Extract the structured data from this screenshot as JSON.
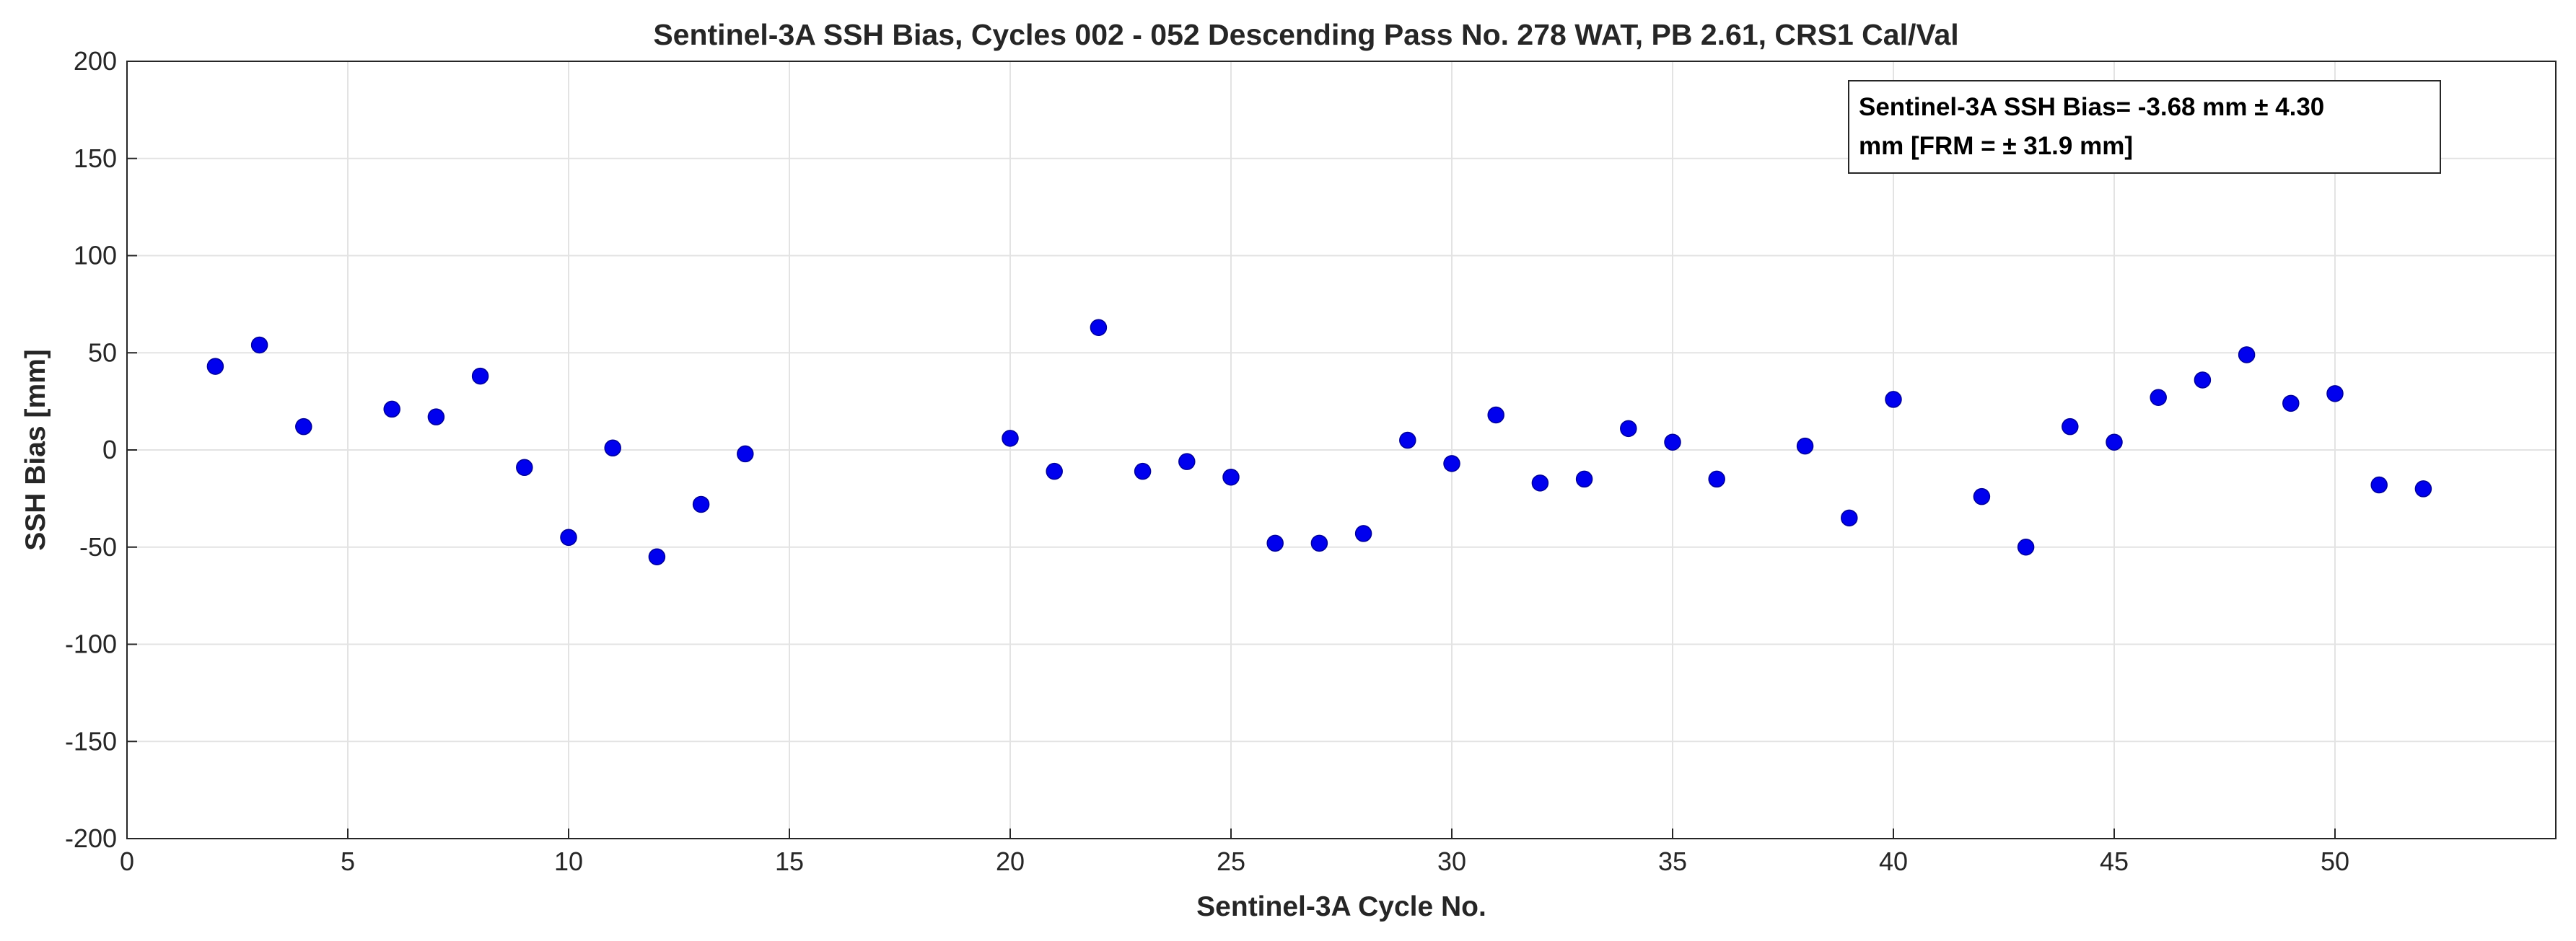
{
  "chart_data": {
    "type": "scatter",
    "title": "Sentinel-3A SSH Bias, Cycles 002 - 052 Descending Pass No. 278 WAT, PB 2.61, CRS1 Cal/Val",
    "xlabel": "Sentinel-3A Cycle No.",
    "ylabel": "SSH Bias [mm]",
    "xlim": [
      0,
      55
    ],
    "ylim": [
      -200,
      200
    ],
    "xticks": [
      "0",
      "5",
      "10",
      "15",
      "20",
      "25",
      "30",
      "35",
      "40",
      "45",
      "50"
    ],
    "yticks": [
      "200",
      "150",
      "100",
      "50",
      "0",
      "-50",
      "-100",
      "-150",
      "-200"
    ],
    "grid": true,
    "marker_color": "#0000ee",
    "series": [
      {
        "name": "SSH Bias",
        "points": [
          {
            "x": 2,
            "y": 43
          },
          {
            "x": 3,
            "y": 54
          },
          {
            "x": 4,
            "y": 12
          },
          {
            "x": 6,
            "y": 21
          },
          {
            "x": 7,
            "y": 17
          },
          {
            "x": 8,
            "y": 38
          },
          {
            "x": 9,
            "y": -9
          },
          {
            "x": 10,
            "y": -45
          },
          {
            "x": 11,
            "y": 1
          },
          {
            "x": 12,
            "y": -55
          },
          {
            "x": 13,
            "y": -28
          },
          {
            "x": 14,
            "y": -2
          },
          {
            "x": 20,
            "y": 6
          },
          {
            "x": 21,
            "y": -11
          },
          {
            "x": 22,
            "y": 63
          },
          {
            "x": 23,
            "y": -11
          },
          {
            "x": 24,
            "y": -6
          },
          {
            "x": 25,
            "y": -14
          },
          {
            "x": 26,
            "y": -48
          },
          {
            "x": 27,
            "y": -48
          },
          {
            "x": 28,
            "y": -43
          },
          {
            "x": 29,
            "y": 5
          },
          {
            "x": 30,
            "y": -7
          },
          {
            "x": 31,
            "y": 18
          },
          {
            "x": 32,
            "y": -17
          },
          {
            "x": 33,
            "y": -15
          },
          {
            "x": 34,
            "y": 11
          },
          {
            "x": 35,
            "y": 4
          },
          {
            "x": 36,
            "y": -15
          },
          {
            "x": 38,
            "y": 2
          },
          {
            "x": 39,
            "y": -35
          },
          {
            "x": 40,
            "y": 26
          },
          {
            "x": 42,
            "y": -24
          },
          {
            "x": 43,
            "y": -50
          },
          {
            "x": 44,
            "y": 12
          },
          {
            "x": 45,
            "y": 4
          },
          {
            "x": 46,
            "y": 27
          },
          {
            "x": 47,
            "y": 36
          },
          {
            "x": 48,
            "y": 49
          },
          {
            "x": 49,
            "y": 24
          },
          {
            "x": 50,
            "y": 29
          },
          {
            "x": 51,
            "y": -18
          },
          {
            "x": 52,
            "y": -20
          }
        ]
      }
    ],
    "annotation": {
      "line1": "Sentinel-3A SSH Bias= -3.68 mm ±  4.30",
      "line2": "mm [FRM = ± 31.9 mm]",
      "placement": "top-right"
    }
  }
}
